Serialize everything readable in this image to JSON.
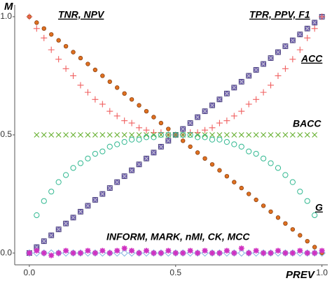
{
  "chart_data": {
    "type": "scatter",
    "y_label": "M",
    "x_label": "PREV",
    "xlim": [
      -0.05,
      1.02
    ],
    "ylim": [
      -0.05,
      1.05
    ],
    "xticks": [
      {
        "value": 0,
        "label": "0.0"
      },
      {
        "value": 0.5,
        "label": "0.5"
      },
      {
        "value": 1,
        "label": "1.0"
      }
    ],
    "yticks": [
      {
        "value": 0,
        "label": "0.0"
      },
      {
        "value": 0.5,
        "label": "0.5"
      },
      {
        "value": 1,
        "label": "1.0"
      }
    ],
    "x": [
      0,
      0.025,
      0.05,
      0.075,
      0.1,
      0.125,
      0.15,
      0.175,
      0.2,
      0.225,
      0.25,
      0.275,
      0.3,
      0.325,
      0.35,
      0.375,
      0.4,
      0.425,
      0.45,
      0.475,
      0.5,
      0.525,
      0.55,
      0.575,
      0.6,
      0.625,
      0.65,
      0.675,
      0.7,
      0.725,
      0.75,
      0.775,
      0.8,
      0.825,
      0.85,
      0.875,
      0.9,
      0.925,
      0.95,
      0.975,
      1
    ],
    "series": [
      {
        "name": "TNR, NPV",
        "color": "#e07020",
        "marker": "dot",
        "values": [
          1,
          0.975,
          0.95,
          0.925,
          0.9,
          0.875,
          0.85,
          0.825,
          0.8,
          0.775,
          0.75,
          0.725,
          0.7,
          0.675,
          0.65,
          0.625,
          0.6,
          0.575,
          0.55,
          0.525,
          0.5,
          0.475,
          0.45,
          0.425,
          0.4,
          0.375,
          0.35,
          0.325,
          0.3,
          0.275,
          0.25,
          0.225,
          0.2,
          0.175,
          0.15,
          0.125,
          0.1,
          0.075,
          0.05,
          0.025,
          0
        ]
      },
      {
        "name": "TPR, PPV, F1",
        "color": "#7868b8",
        "marker": "square-x",
        "values": [
          0,
          0.025,
          0.05,
          0.075,
          0.1,
          0.125,
          0.15,
          0.175,
          0.2,
          0.225,
          0.25,
          0.275,
          0.3,
          0.325,
          0.35,
          0.375,
          0.4,
          0.425,
          0.45,
          0.475,
          0.5,
          0.525,
          0.55,
          0.575,
          0.6,
          0.625,
          0.65,
          0.675,
          0.7,
          0.725,
          0.75,
          0.775,
          0.8,
          0.825,
          0.85,
          0.875,
          0.9,
          0.925,
          0.95,
          0.975,
          1
        ]
      },
      {
        "name": "ACC",
        "color": "#f06060",
        "marker": "plus",
        "values": [
          1,
          0.95,
          0.91,
          0.86,
          0.82,
          0.78,
          0.75,
          0.71,
          0.68,
          0.65,
          0.63,
          0.6,
          0.58,
          0.56,
          0.55,
          0.53,
          0.52,
          0.51,
          0.51,
          0.5,
          0.5,
          0.5,
          0.51,
          0.51,
          0.52,
          0.53,
          0.55,
          0.56,
          0.58,
          0.6,
          0.63,
          0.65,
          0.68,
          0.71,
          0.75,
          0.78,
          0.82,
          0.86,
          0.91,
          0.95,
          1
        ]
      },
      {
        "name": "BACC",
        "color": "#66b030",
        "marker": "cross",
        "values": [
          null,
          0.5,
          0.5,
          0.5,
          0.5,
          0.5,
          0.5,
          0.5,
          0.5,
          0.5,
          0.5,
          0.5,
          0.5,
          0.5,
          0.5,
          0.5,
          0.5,
          0.5,
          0.5,
          0.5,
          0.5,
          0.5,
          0.5,
          0.5,
          0.5,
          0.5,
          0.5,
          0.5,
          0.5,
          0.5,
          0.5,
          0.5,
          0.5,
          0.5,
          0.5,
          0.5,
          0.5,
          0.5,
          0.5,
          0.5,
          null
        ]
      },
      {
        "name": "G",
        "color": "#30b890",
        "marker": "circle",
        "values": [
          null,
          0.16,
          0.22,
          0.26,
          0.3,
          0.33,
          0.36,
          0.38,
          0.4,
          0.42,
          0.43,
          0.45,
          0.46,
          0.47,
          0.48,
          0.48,
          0.49,
          0.49,
          0.5,
          0.5,
          0.5,
          0.5,
          0.5,
          0.49,
          0.49,
          0.48,
          0.48,
          0.47,
          0.46,
          0.45,
          0.43,
          0.42,
          0.4,
          0.38,
          0.36,
          0.33,
          0.3,
          0.26,
          0.22,
          0.16,
          null
        ]
      },
      {
        "color": "#80b0e0",
        "marker": "diamond",
        "values": [
          0,
          0,
          0,
          0,
          0,
          0,
          0,
          0,
          0,
          0,
          0,
          0,
          0,
          0,
          0,
          0,
          0,
          0,
          0,
          0,
          0,
          0,
          0,
          0,
          0,
          0,
          0,
          0,
          0,
          0,
          0,
          0,
          0,
          0,
          0,
          0,
          0,
          0,
          0,
          0,
          0
        ]
      },
      {
        "name": "INFORM, MARK, nMI, CK, MCC",
        "color": "#d030c0",
        "marker": "star",
        "values": [
          0,
          0.01,
          0,
          -0.01,
          0,
          0.01,
          0,
          0,
          0.01,
          0,
          0.01,
          0,
          0.01,
          0.02,
          0.01,
          0,
          0.01,
          0,
          0,
          0.01,
          0,
          0,
          0.01,
          0,
          0.01,
          0,
          0,
          0.01,
          0,
          0.02,
          0,
          0.01,
          0,
          0,
          0.01,
          0,
          0,
          0.01,
          0,
          0,
          0.01
        ]
      }
    ]
  }
}
